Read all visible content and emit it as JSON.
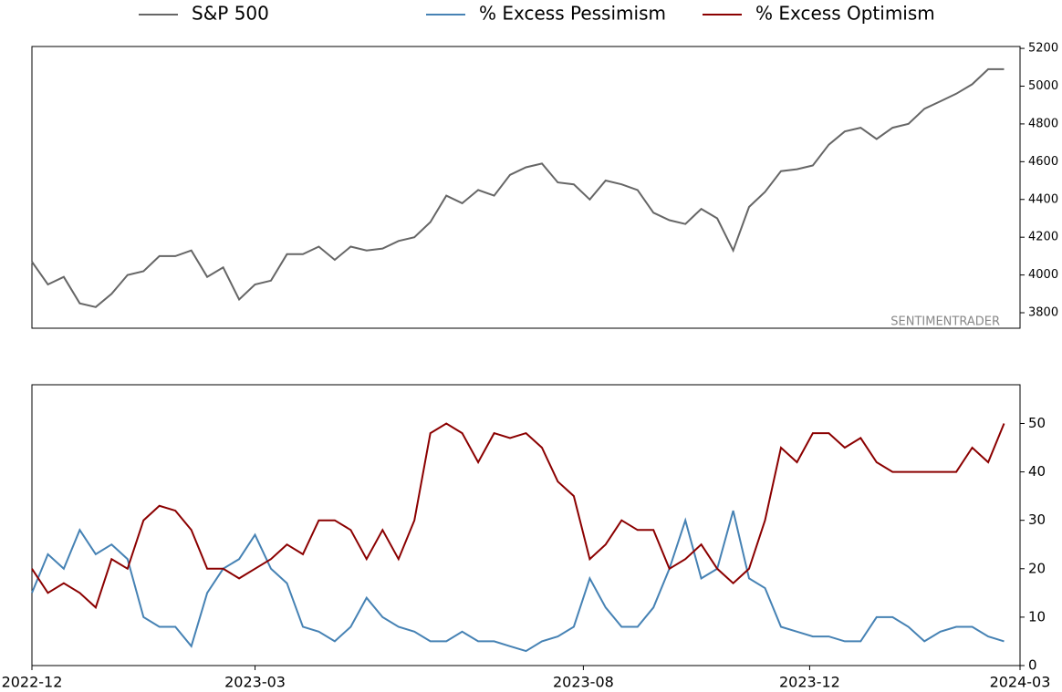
{
  "chart_data": [
    {
      "type": "line",
      "annotation": "SENTIMENTRADER",
      "x": [
        0,
        5,
        10,
        15,
        20,
        25,
        30,
        35,
        40,
        45,
        50,
        55,
        60,
        65,
        70,
        75,
        80,
        85,
        90,
        95,
        100,
        105,
        110,
        115,
        120,
        125,
        130,
        135,
        140,
        145,
        150,
        155,
        160,
        165,
        170,
        175,
        180,
        185,
        190,
        195,
        200,
        205,
        210,
        215,
        220,
        225,
        230,
        235,
        240,
        245,
        250,
        255,
        260,
        265,
        270,
        275,
        280,
        285,
        290,
        295,
        300,
        305
      ],
      "xlim": [
        0,
        310
      ],
      "series": [
        {
          "name": "S&P 500",
          "color": "#666666",
          "axis": "y2",
          "values": [
            4070,
            3950,
            3990,
            3850,
            3830,
            3900,
            4000,
            4020,
            4100,
            4100,
            4130,
            3990,
            4040,
            3870,
            3950,
            3970,
            4110,
            4110,
            4150,
            4080,
            4150,
            4130,
            4140,
            4180,
            4200,
            4280,
            4420,
            4380,
            4450,
            4420,
            4530,
            4570,
            4590,
            4490,
            4480,
            4400,
            4500,
            4480,
            4450,
            4330,
            4290,
            4270,
            4350,
            4300,
            4130,
            4360,
            4440,
            4550,
            4560,
            4580,
            4690,
            4760,
            4780,
            4720,
            4780,
            4800,
            4880,
            4920,
            4960,
            5010,
            5090,
            5090
          ]
        }
      ],
      "y2lim": [
        3718,
        5210
      ],
      "y2ticks": [
        3800,
        4000,
        4200,
        4400,
        4600,
        4800,
        5000,
        5200
      ]
    },
    {
      "type": "line",
      "x": [
        0,
        5,
        10,
        15,
        20,
        25,
        30,
        35,
        40,
        45,
        50,
        55,
        60,
        65,
        70,
        75,
        80,
        85,
        90,
        95,
        100,
        105,
        110,
        115,
        120,
        125,
        130,
        135,
        140,
        145,
        150,
        155,
        160,
        165,
        170,
        175,
        180,
        185,
        190,
        195,
        200,
        205,
        210,
        215,
        220,
        225,
        230,
        235,
        240,
        245,
        250,
        255,
        260,
        265,
        270,
        275,
        280,
        285,
        290,
        295,
        300,
        305
      ],
      "xlim": [
        0,
        310
      ],
      "xticks": [
        {
          "value": 0,
          "label": "2022-12"
        },
        {
          "value": 70,
          "label": "2023-03"
        },
        {
          "value": 173,
          "label": "2023-08"
        },
        {
          "value": 244,
          "label": "2023-12"
        },
        {
          "value": 310,
          "label": "2024-03"
        }
      ],
      "series": [
        {
          "name": "% Excess Pessimism",
          "color": "#4682b4",
          "axis": "y2",
          "values": [
            15,
            23,
            20,
            28,
            23,
            25,
            22,
            10,
            8,
            8,
            4,
            15,
            20,
            22,
            27,
            20,
            17,
            8,
            7,
            5,
            8,
            14,
            10,
            8,
            7,
            5,
            5,
            7,
            5,
            5,
            4,
            3,
            5,
            6,
            8,
            18,
            12,
            8,
            8,
            12,
            20,
            30,
            18,
            20,
            32,
            18,
            16,
            8,
            7,
            6,
            6,
            5,
            5,
            10,
            10,
            8,
            5,
            7,
            8,
            8,
            6,
            5
          ]
        },
        {
          "name": "% Excess Optimism",
          "color": "#8b0000",
          "axis": "y2",
          "values": [
            20,
            15,
            17,
            15,
            12,
            22,
            20,
            30,
            33,
            32,
            28,
            20,
            20,
            18,
            20,
            22,
            25,
            23,
            30,
            30,
            28,
            22,
            28,
            22,
            30,
            48,
            50,
            48,
            42,
            48,
            47,
            48,
            45,
            38,
            35,
            22,
            25,
            30,
            28,
            28,
            20,
            22,
            25,
            20,
            17,
            20,
            30,
            45,
            42,
            48,
            48,
            45,
            47,
            42,
            40,
            40,
            40,
            40,
            40,
            45,
            42,
            50
          ]
        }
      ],
      "y2lim": [
        0,
        58
      ],
      "y2ticks": [
        0,
        10,
        20,
        30,
        40,
        50
      ]
    }
  ]
}
